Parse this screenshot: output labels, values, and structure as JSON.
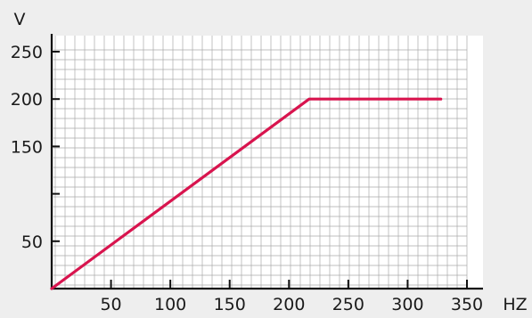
{
  "chart_data": {
    "type": "line",
    "title": "",
    "xlabel": "HZ",
    "ylabel": "V",
    "xlim": [
      0,
      350
    ],
    "ylim": [
      0,
      250
    ],
    "x_ticks": [
      50,
      100,
      150,
      200,
      250,
      300,
      350
    ],
    "x_tick_labels": [
      "50",
      "100",
      "150",
      "200",
      "250",
      "300",
      "350"
    ],
    "y_ticks": [
      50,
      150,
      200,
      250
    ],
    "y_tick_labels": [
      "50",
      "150",
      "200",
      "250"
    ],
    "y_ticks_unlabeled": [
      100
    ],
    "grid": true,
    "series": [
      {
        "x": [
          0,
          217,
          328
        ],
        "y": [
          0,
          200,
          200
        ]
      }
    ],
    "colors": {
      "line": "#d8144e",
      "grid": "#aaaaaa",
      "plot_bg": "#ffffff",
      "page_bg": "#eeeeee",
      "axis": "#111111"
    }
  }
}
